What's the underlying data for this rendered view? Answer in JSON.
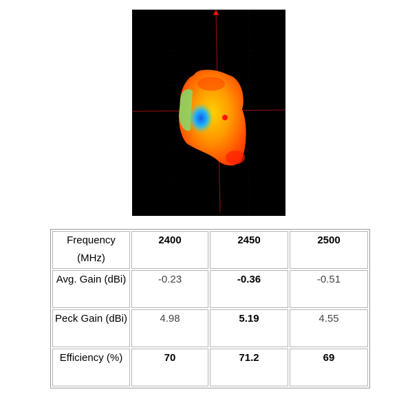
{
  "table": {
    "rows": [
      [
        "Frequency (MHz)",
        "2400",
        "2450",
        "2500"
      ],
      [
        "Avg. Gain (dBi)",
        "-0.23",
        "-0.36",
        "-0.51"
      ],
      [
        "Peck Gain (dBi)",
        "4.98",
        "5.19",
        "4.55"
      ],
      [
        "Efficiency (%)",
        "70",
        "71.2",
        "69"
      ]
    ]
  }
}
